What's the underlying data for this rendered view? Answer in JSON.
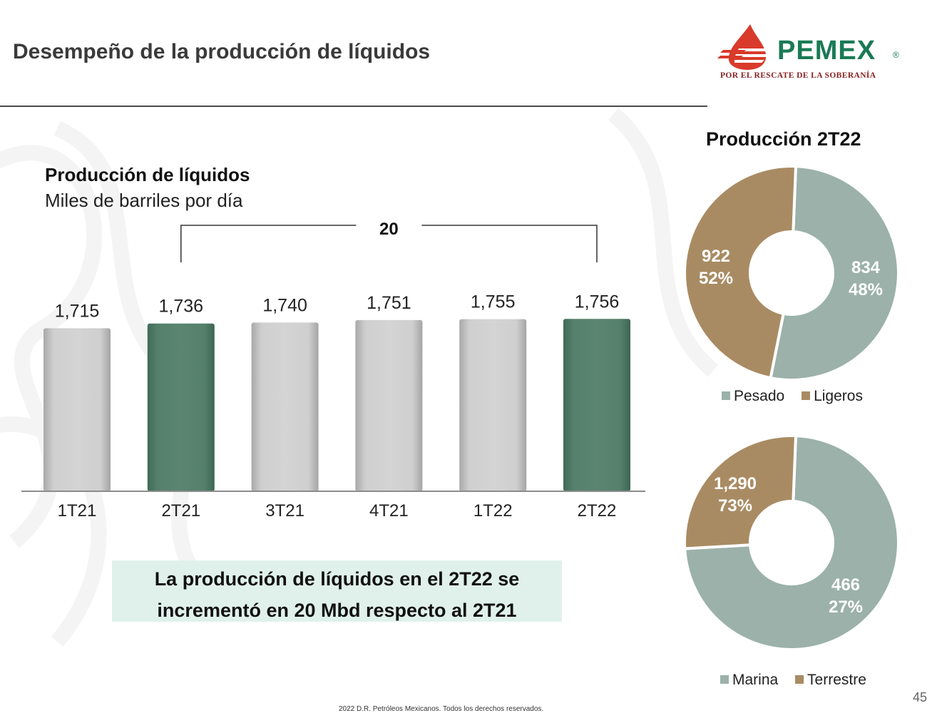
{
  "title": "Desempeño de la producción de líquidos",
  "logo": {
    "wordmark": "PEMEX",
    "registered": "®",
    "tagline": "POR EL RESCATE DE LA SOBERANÍA"
  },
  "colors": {
    "bar_default": "#c8c8c8",
    "bar_highlight": "#55806c",
    "pesado": "#9bb1aa",
    "ligeros": "#a98b63",
    "marina": "#9bb1aa",
    "terrestre": "#a98b63",
    "callout_bg": "#e0f1ec"
  },
  "chart_data": [
    {
      "type": "bar",
      "title": "Producción de líquidos",
      "subtitle": "Miles de barriles por día",
      "categories": [
        "1T21",
        "2T21",
        "3T21",
        "4T21",
        "1T22",
        "2T22"
      ],
      "values": [
        1715,
        1736,
        1740,
        1751,
        1755,
        1756
      ],
      "value_labels": [
        "1,715",
        "1,736",
        "1,740",
        "1,751",
        "1,755",
        "1,756"
      ],
      "highlighted": [
        "2T21",
        "2T22"
      ],
      "annotation": {
        "from": "2T21",
        "to": "2T22",
        "label": "20"
      }
    },
    {
      "type": "pie",
      "title": "Producción 2T22",
      "donut": true,
      "slices": [
        {
          "name": "Pesado",
          "value": 922,
          "value_label": "922",
          "percent": "52%"
        },
        {
          "name": "Ligeros",
          "value": 834,
          "value_label": "834",
          "percent": "48%"
        }
      ],
      "legend": "bottom"
    },
    {
      "type": "pie",
      "title": "",
      "donut": true,
      "slices": [
        {
          "name": "Marina",
          "value": 1290,
          "value_label": "1,290",
          "percent": "73%"
        },
        {
          "name": "Terrestre",
          "value": 466,
          "value_label": "466",
          "percent": "27%"
        }
      ],
      "legend": "bottom"
    }
  ],
  "callout": {
    "line1": "La producción de líquidos en el 2T22 se",
    "line2": "incrementó en 20 Mbd respecto al 2T21"
  },
  "page_number": "45",
  "footer": "2022 D.R. Petróleos Mexicanos. Todos los derechos reservados."
}
